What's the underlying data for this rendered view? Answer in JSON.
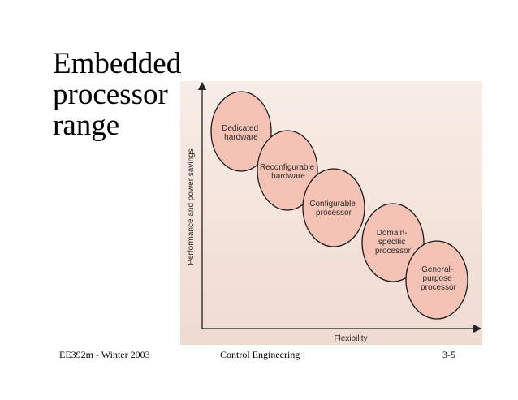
{
  "title": {
    "lines": [
      "Embedded",
      "processor",
      "range"
    ]
  },
  "diagram": {
    "y_axis_label": "Performance and power savings",
    "x_axis_label": "Flexibility",
    "nodes": [
      {
        "lines": [
          "Dedicated",
          "hardware"
        ]
      },
      {
        "lines": [
          "Reconfigurable",
          "hardware"
        ]
      },
      {
        "lines": [
          "Configurable",
          "processor"
        ]
      },
      {
        "lines": [
          "Domain-",
          "specific",
          "processor"
        ]
      },
      {
        "lines": [
          "General-",
          "purpose",
          "processor"
        ]
      }
    ],
    "colors": {
      "background_top": "#f7ebe4",
      "background_bottom": "#f1ddd3",
      "ellipse_fill": "#f5c2b6",
      "ellipse_stroke": "#1a1a1a"
    }
  },
  "footer": {
    "left": "EE392m  - Winter 2003",
    "center": "Control Engineering",
    "right": "3-5"
  }
}
